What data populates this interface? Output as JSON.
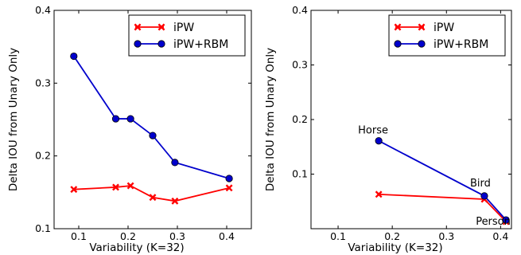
{
  "chart_data": [
    {
      "type": "line",
      "xlabel": "Variability (K=32)",
      "ylabel": "Delta IOU from Unary Only",
      "xlim": [
        0.05,
        0.45
      ],
      "ylim": [
        0.1,
        0.4
      ],
      "xticks": [
        0.1,
        0.2,
        0.3,
        0.4
      ],
      "xtick_labels": [
        "0.1",
        "0.2",
        "0.3",
        "0.4"
      ],
      "yticks": [
        0.1,
        0.2,
        0.3,
        0.4
      ],
      "ytick_labels": [
        "0.1",
        "0.2",
        "0.3",
        "0.4"
      ],
      "legend": "top-right",
      "grid": false,
      "series": [
        {
          "name": "iPW",
          "color": "#ff0000",
          "marker": "x",
          "x": [
            0.09,
            0.175,
            0.205,
            0.25,
            0.295,
            0.405
          ],
          "y": [
            0.154,
            0.157,
            0.159,
            0.143,
            0.138,
            0.156
          ]
        },
        {
          "name": "iPW+RBM",
          "color": "#0000cc",
          "marker": "o",
          "x": [
            0.09,
            0.175,
            0.205,
            0.25,
            0.295,
            0.405
          ],
          "y": [
            0.337,
            0.251,
            0.251,
            0.228,
            0.191,
            0.169
          ]
        }
      ],
      "annotations": []
    },
    {
      "type": "line",
      "xlabel": "Variability (K=32)",
      "ylabel": "Delta IOU from Unary Only",
      "xlim": [
        0.05,
        0.42
      ],
      "ylim": [
        0.0,
        0.4
      ],
      "xticks": [
        0.1,
        0.2,
        0.3,
        0.4
      ],
      "xtick_labels": [
        "0.1",
        "0.2",
        "0.3",
        "0.4"
      ],
      "yticks": [
        0.1,
        0.2,
        0.3,
        0.4
      ],
      "ytick_labels": [
        "0.1",
        "0.2",
        "0.3",
        "0.4"
      ],
      "legend": "top-right",
      "grid": false,
      "series": [
        {
          "name": "iPW",
          "color": "#ff0000",
          "marker": "x",
          "x": [
            0.175,
            0.37,
            0.41
          ],
          "y": [
            0.063,
            0.054,
            0.013
          ]
        },
        {
          "name": "iPW+RBM",
          "color": "#0000cc",
          "marker": "o",
          "x": [
            0.175,
            0.37,
            0.41
          ],
          "y": [
            0.161,
            0.06,
            0.016
          ]
        }
      ],
      "annotations": [
        {
          "text": "Horse",
          "x": 0.175,
          "y": 0.161,
          "pos": "above-left"
        },
        {
          "text": "Bird",
          "x": 0.37,
          "y": 0.06,
          "pos": "above"
        },
        {
          "text": "Person",
          "x": 0.41,
          "y": 0.016,
          "pos": "left"
        }
      ]
    }
  ]
}
